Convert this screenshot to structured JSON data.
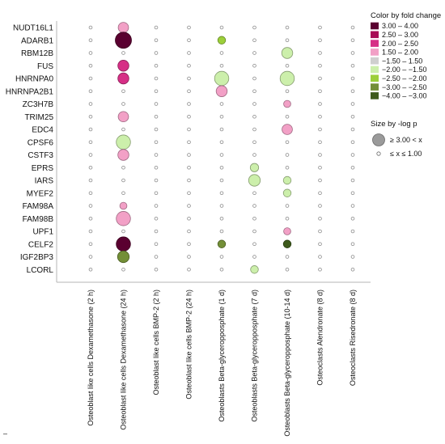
{
  "chart_data": {
    "type": "bubble-matrix",
    "rows": [
      "NUDT16L1",
      "ADARB1",
      "RBM12B",
      "FUS",
      "HNRNPA0",
      "HNRNPA2B1",
      "ZC3H7B",
      "TRIM25",
      "EDC4",
      "CPSF6",
      "CSTF3",
      "EPRS",
      "IARS",
      "MYEF2",
      "FAM98A",
      "FAM98B",
      "UPF1",
      "CELF2",
      "IGF2BP3",
      "LCORL"
    ],
    "columns": [
      "Osteoblast like cells Dexamethasone (2 h)",
      "Osteoblast like cells Dexamethasone (24 h)",
      "Osteoblast like cells BMP-2 (2 h)",
      "Osteoblast like cells BMP-2 (24 h)",
      "Osteoblasts Beta-glyceropposphate (1 d)",
      "Osteoblasts Beta-glyceropposphate (7 d)",
      "Osteoblasts Beta-glyceropposphate (10-14 d)",
      "Osteoclasts Alendronate (8 d)",
      "Osteoclasts Risedronate (8 d)"
    ],
    "points": [
      {
        "row": "NUDT16L1",
        "col": 1,
        "fc": 1.7,
        "size": 0.55
      },
      {
        "row": "ADARB1",
        "col": 1,
        "fc": 3.3,
        "size": 1.0
      },
      {
        "row": "ADARB1",
        "col": 4,
        "fc": -2.2,
        "size": 0.35
      },
      {
        "row": "RBM12B",
        "col": 6,
        "fc": -1.8,
        "size": 0.6
      },
      {
        "row": "FUS",
        "col": 1,
        "fc": 2.2,
        "size": 0.6
      },
      {
        "row": "HNRNPA0",
        "col": 1,
        "fc": 2.2,
        "size": 0.6
      },
      {
        "row": "HNRNPA0",
        "col": 4,
        "fc": -1.8,
        "size": 0.85
      },
      {
        "row": "HNRNPA0",
        "col": 6,
        "fc": -1.8,
        "size": 0.85
      },
      {
        "row": "HNRNPA2B1",
        "col": 4,
        "fc": 1.7,
        "size": 0.6
      },
      {
        "row": "ZC3H7B",
        "col": 6,
        "fc": 1.7,
        "size": 0.3
      },
      {
        "row": "TRIM25",
        "col": 1,
        "fc": 1.7,
        "size": 0.55
      },
      {
        "row": "EDC4",
        "col": 6,
        "fc": 1.7,
        "size": 0.55
      },
      {
        "row": "CPSF6",
        "col": 1,
        "fc": -1.8,
        "size": 0.85
      },
      {
        "row": "CSTF3",
        "col": 1,
        "fc": 1.7,
        "size": 0.6
      },
      {
        "row": "EPRS",
        "col": 5,
        "fc": -1.8,
        "size": 0.4
      },
      {
        "row": "IARS",
        "col": 5,
        "fc": -1.8,
        "size": 0.65
      },
      {
        "row": "IARS",
        "col": 6,
        "fc": -1.8,
        "size": 0.35
      },
      {
        "row": "MYEF2",
        "col": 6,
        "fc": -1.8,
        "size": 0.35
      },
      {
        "row": "FAM98A",
        "col": 1,
        "fc": 1.7,
        "size": 0.3
      },
      {
        "row": "FAM98B",
        "col": 1,
        "fc": 1.7,
        "size": 0.85
      },
      {
        "row": "UPF1",
        "col": 6,
        "fc": 1.7,
        "size": 0.3
      },
      {
        "row": "CELF2",
        "col": 1,
        "fc": 3.3,
        "size": 0.85
      },
      {
        "row": "CELF2",
        "col": 4,
        "fc": -2.7,
        "size": 0.35
      },
      {
        "row": "CELF2",
        "col": 6,
        "fc": -3.3,
        "size": 0.35
      },
      {
        "row": "IGF2BP3",
        "col": 1,
        "fc": -2.7,
        "size": 0.65
      },
      {
        "row": "LCORL",
        "col": 5,
        "fc": -1.8,
        "size": 0.35
      }
    ],
    "legend": {
      "color_title": "Color by fold change",
      "color_bins": [
        {
          "label": "3.00 – 4.00",
          "color": "#5a0030"
        },
        {
          "label": "2.50 – 3.00",
          "color": "#a80a56"
        },
        {
          "label": "2.00 – 2.50",
          "color": "#d62f86"
        },
        {
          "label": "1.50 – 2.00",
          "color": "#f2a0c6"
        },
        {
          "label": "−1.50 – 1.50",
          "color": "#cfcfcf"
        },
        {
          "label": "−2.00 – −1.50",
          "color": "#ccefab"
        },
        {
          "label": "−2.50 – −2.00",
          "color": "#9ccf3a"
        },
        {
          "label": "−3.00 – −2.50",
          "color": "#738f37"
        },
        {
          "label": "−4.00 – −3.00",
          "color": "#3e5a1c"
        }
      ],
      "size_title": "Size by -log p",
      "size_items": [
        {
          "label": "≥ 3.00 < x"
        },
        {
          "label": "≤ x ≤ 1.00"
        }
      ]
    },
    "colors": {
      "neutral_dot": "#ffffff",
      "neutral_stroke": "#8c8c8c",
      "axis": "#b5b5b5"
    }
  },
  "footer_mark": "–"
}
